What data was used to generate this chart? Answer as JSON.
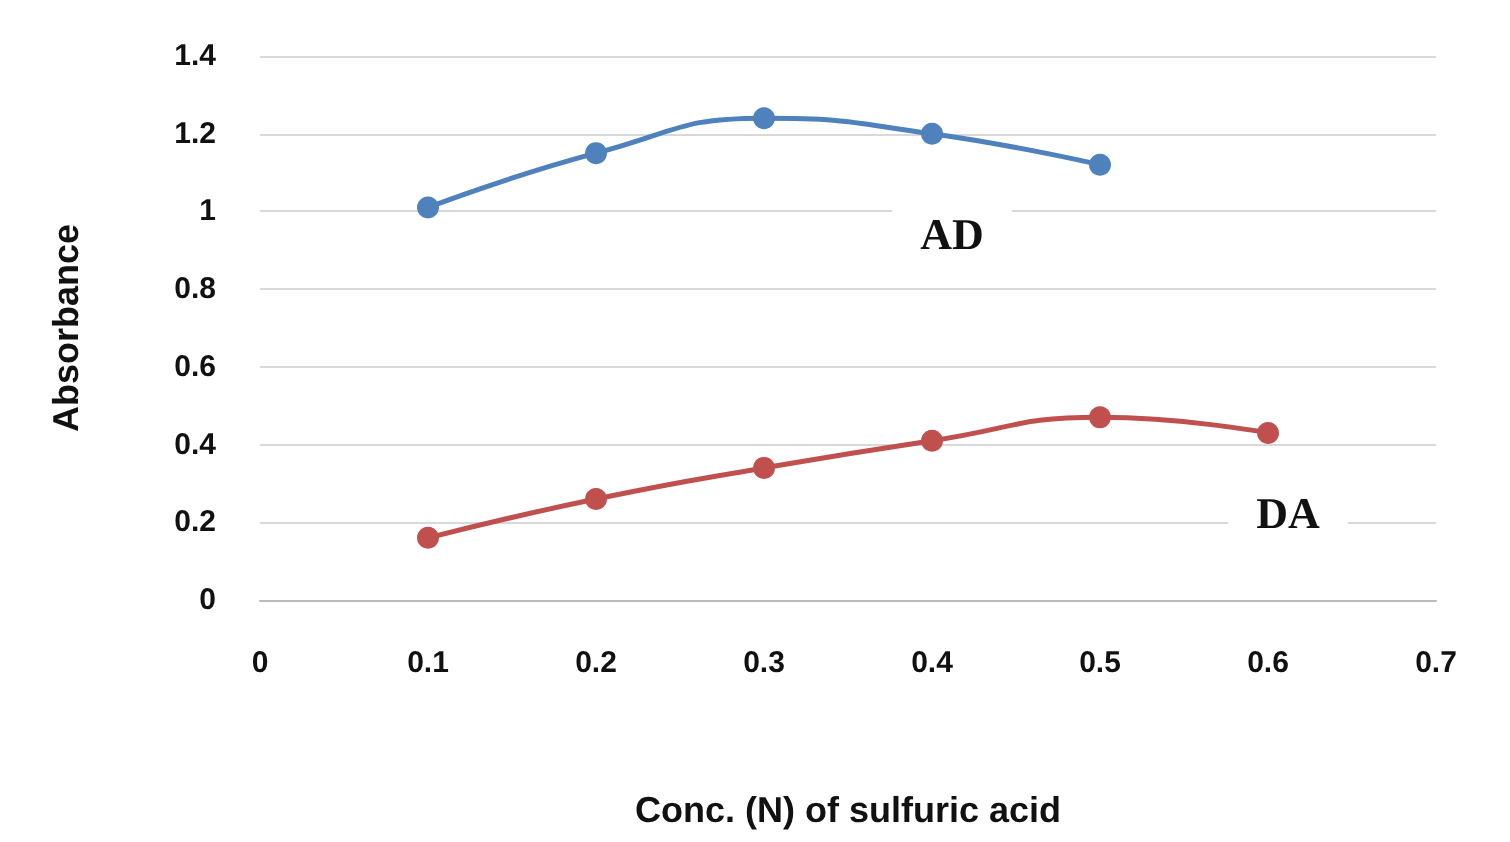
{
  "chart_data": {
    "type": "line",
    "xlabel": "Conc. (N) of sulfuric acid",
    "ylabel": "Absorbance",
    "xlim": [
      0,
      0.7
    ],
    "xticks": [
      0,
      0.1,
      0.2,
      0.3,
      0.4,
      0.5,
      0.6,
      0.7
    ],
    "ylim": [
      0,
      1.4
    ],
    "yticks": [
      0,
      0.2,
      0.4,
      0.6,
      0.8,
      1,
      1.2,
      1.4
    ],
    "grid": "y",
    "marker": "circle",
    "line_style": "solid",
    "legend": false,
    "series": [
      {
        "name": "AD",
        "color": "#4f81bd",
        "x": [
          0.1,
          0.2,
          0.3,
          0.4,
          0.5
        ],
        "values": [
          1.01,
          1.15,
          1.24,
          1.2,
          1.12
        ]
      },
      {
        "name": "DA",
        "color": "#c0504d",
        "x": [
          0.1,
          0.2,
          0.3,
          0.4,
          0.5,
          0.6
        ],
        "values": [
          0.16,
          0.26,
          0.34,
          0.41,
          0.47,
          0.43
        ]
      }
    ]
  }
}
